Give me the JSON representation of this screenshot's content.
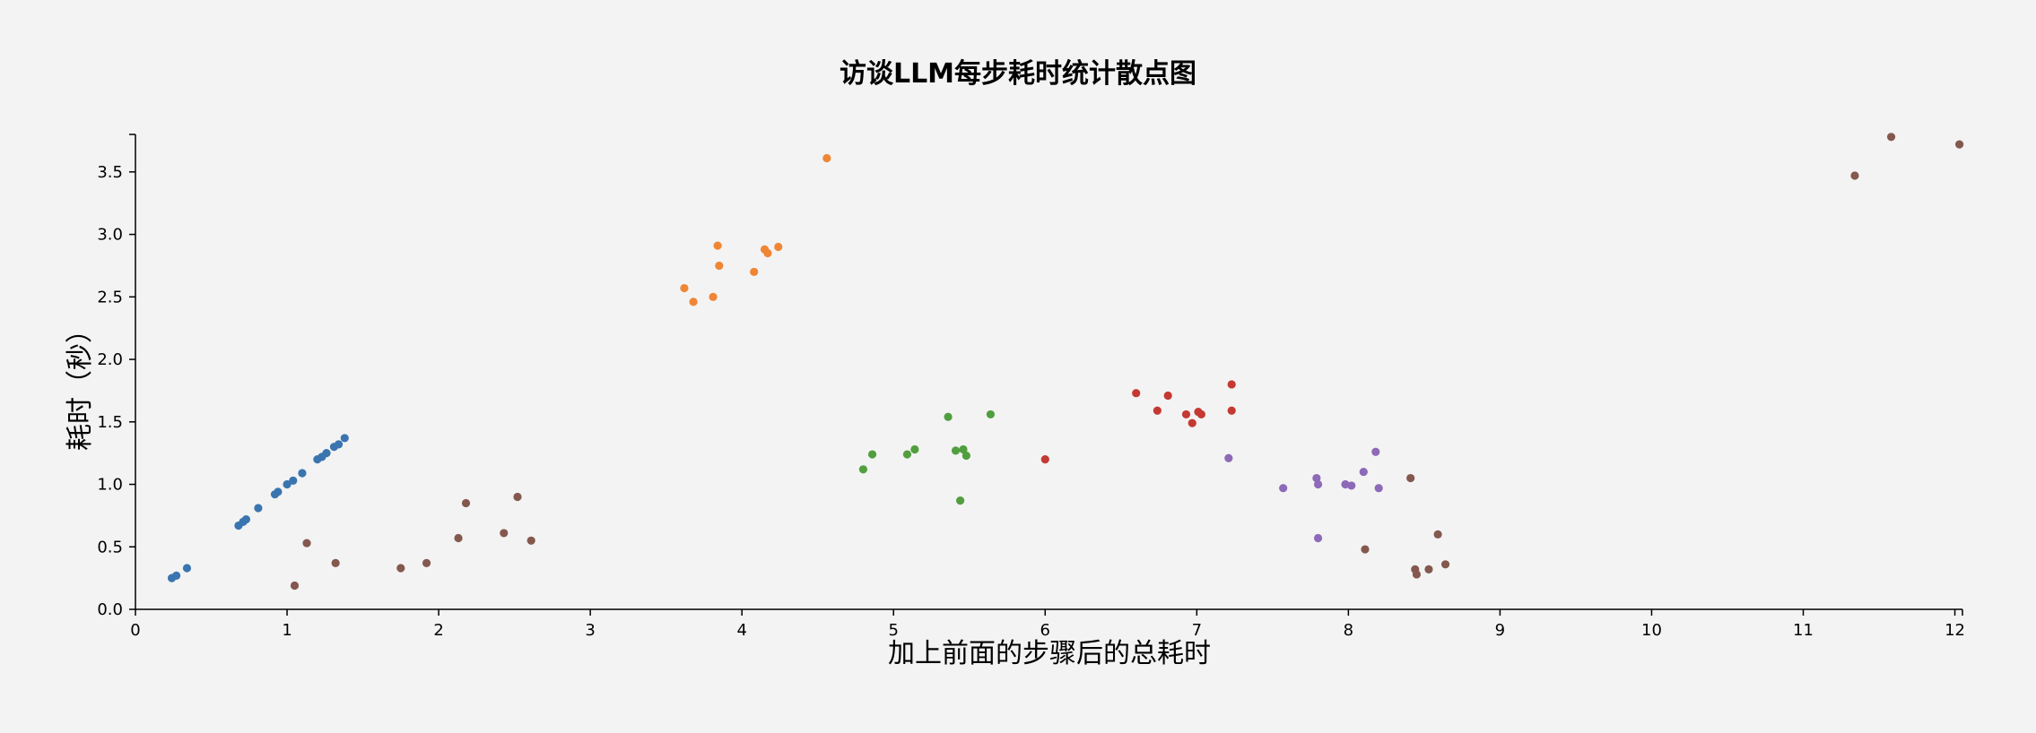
{
  "chart_data": {
    "type": "scatter",
    "title": "访谈LLM每步耗时统计散点图",
    "xlabel": "加上前面的步骤后的总耗时",
    "ylabel": "耗时（秒）",
    "xlim": [
      0,
      12.05
    ],
    "ylim": [
      0,
      3.8
    ],
    "x_ticks": [
      0,
      1,
      2,
      3,
      4,
      5,
      6,
      7,
      8,
      9,
      10,
      11,
      12
    ],
    "y_ticks": [
      0,
      0.5,
      1,
      1.5,
      2,
      2.5,
      3,
      3.5
    ],
    "y_tick_labels": [
      "0.0",
      "0.5",
      "1.0",
      "1.5",
      "2.0",
      "2.5",
      "3.0",
      "3.5"
    ],
    "grid": false,
    "legend": "none",
    "series": [
      {
        "color": "#3a75b0",
        "points": [
          [
            0.24,
            0.25
          ],
          [
            0.27,
            0.27
          ],
          [
            0.34,
            0.33
          ],
          [
            0.68,
            0.67
          ],
          [
            0.71,
            0.7
          ],
          [
            0.73,
            0.72
          ],
          [
            0.81,
            0.81
          ],
          [
            0.92,
            0.92
          ],
          [
            0.94,
            0.94
          ],
          [
            1.0,
            1.0
          ],
          [
            1.04,
            1.03
          ],
          [
            1.1,
            1.09
          ],
          [
            1.2,
            1.2
          ],
          [
            1.23,
            1.22
          ],
          [
            1.26,
            1.25
          ],
          [
            1.31,
            1.3
          ],
          [
            1.34,
            1.32
          ],
          [
            1.38,
            1.37
          ]
        ]
      },
      {
        "color": "#ef8636",
        "points": [
          [
            3.62,
            2.57
          ],
          [
            3.68,
            2.46
          ],
          [
            3.81,
            2.5
          ],
          [
            3.84,
            2.91
          ],
          [
            3.85,
            2.75
          ],
          [
            4.08,
            2.7
          ],
          [
            4.15,
            2.88
          ],
          [
            4.17,
            2.85
          ],
          [
            4.24,
            2.9
          ],
          [
            4.56,
            3.61
          ]
        ]
      },
      {
        "color": "#519e3e",
        "points": [
          [
            4.8,
            1.12
          ],
          [
            4.86,
            1.24
          ],
          [
            5.09,
            1.24
          ],
          [
            5.14,
            1.28
          ],
          [
            5.36,
            1.54
          ],
          [
            5.41,
            1.27
          ],
          [
            5.44,
            0.87
          ],
          [
            5.46,
            1.28
          ],
          [
            5.48,
            1.23
          ],
          [
            5.64,
            1.56
          ]
        ]
      },
      {
        "color": "#c43932",
        "points": [
          [
            6.0,
            1.2
          ],
          [
            6.6,
            1.73
          ],
          [
            6.74,
            1.59
          ],
          [
            6.81,
            1.71
          ],
          [
            6.93,
            1.56
          ],
          [
            6.97,
            1.49
          ],
          [
            7.01,
            1.58
          ],
          [
            7.03,
            1.56
          ],
          [
            7.23,
            1.8
          ],
          [
            7.23,
            1.59
          ]
        ]
      },
      {
        "color": "#8d69b8",
        "points": [
          [
            7.21,
            1.21
          ],
          [
            7.57,
            0.97
          ],
          [
            7.79,
            1.05
          ],
          [
            7.8,
            0.57
          ],
          [
            7.8,
            1.0
          ],
          [
            7.98,
            1.0
          ],
          [
            8.02,
            0.99
          ],
          [
            8.1,
            1.1
          ],
          [
            8.18,
            1.26
          ],
          [
            8.2,
            0.97
          ]
        ]
      },
      {
        "color": "#84584e",
        "points": [
          [
            1.05,
            0.19
          ],
          [
            1.13,
            0.53
          ],
          [
            1.32,
            0.37
          ],
          [
            1.75,
            0.33
          ],
          [
            1.92,
            0.37
          ],
          [
            2.13,
            0.57
          ],
          [
            2.18,
            0.85
          ],
          [
            2.43,
            0.61
          ],
          [
            2.52,
            0.9
          ],
          [
            2.61,
            0.55
          ],
          [
            8.11,
            0.48
          ],
          [
            8.41,
            1.05
          ],
          [
            8.44,
            0.32
          ],
          [
            8.45,
            0.28
          ],
          [
            8.53,
            0.32
          ],
          [
            8.59,
            0.6
          ],
          [
            8.64,
            0.36
          ],
          [
            11.34,
            3.47
          ],
          [
            11.58,
            3.78
          ],
          [
            12.03,
            3.72
          ]
        ]
      }
    ]
  }
}
